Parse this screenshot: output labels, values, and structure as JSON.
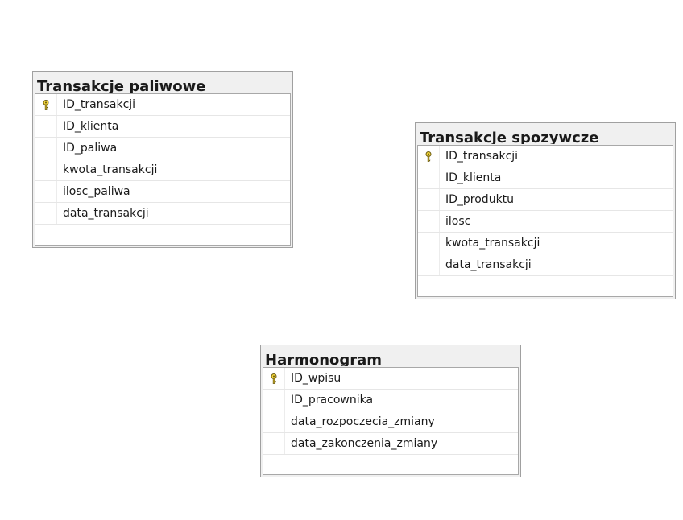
{
  "tables": [
    {
      "title": "Transakcje paliwowe",
      "columns": [
        {
          "name": "ID_transakcji",
          "key": true,
          "icon": "key-icon"
        },
        {
          "name": "ID_klienta",
          "key": false
        },
        {
          "name": "ID_paliwa",
          "key": false
        },
        {
          "name": "kwota_transakcji",
          "key": false
        },
        {
          "name": "ilosc_paliwa",
          "key": false
        },
        {
          "name": "data_transakcji",
          "key": false
        }
      ]
    },
    {
      "title": "Transakcje spozywcze",
      "columns": [
        {
          "name": "ID_transakcji",
          "key": true,
          "icon": "key-icon"
        },
        {
          "name": "ID_klienta",
          "key": false
        },
        {
          "name": "ID_produktu",
          "key": false
        },
        {
          "name": "ilosc",
          "key": false
        },
        {
          "name": "kwota_transakcji",
          "key": false
        },
        {
          "name": "data_transakcji",
          "key": false
        }
      ]
    },
    {
      "title": "Harmonogram",
      "columns": [
        {
          "name": "ID_wpisu",
          "key": true,
          "icon": "key-icon"
        },
        {
          "name": "ID_pracownika",
          "key": false
        },
        {
          "name": "data_rozpoczecia_zmiany",
          "key": false
        },
        {
          "name": "data_zakonczenia_zmiany",
          "key": false
        }
      ]
    }
  ],
  "colors": {
    "key_fill": "#f2d43a",
    "key_stroke": "#6a5a10"
  }
}
